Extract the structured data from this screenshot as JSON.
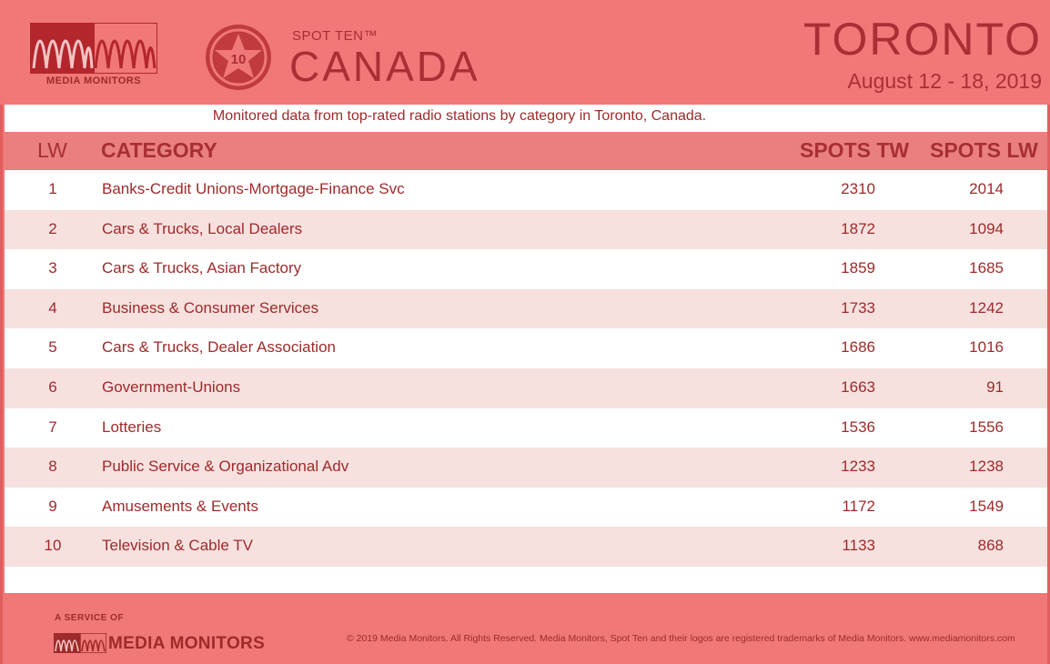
{
  "header": {
    "brand": "MEDIA MONITORS",
    "spot_ten": "SPOT TEN™",
    "badge_number": "10",
    "country": "CANADA",
    "city": "TORONTO",
    "dates": "August 12 - 18, 2019"
  },
  "subtitle": "Monitored data from top-rated radio stations by category in Toronto, Canada.",
  "table": {
    "columns": [
      "LW",
      "CATEGORY",
      "SPOTS TW",
      "SPOTS LW"
    ],
    "rows": [
      {
        "lw": "1",
        "category": "Banks-Credit Unions-Mortgage-Finance Svc",
        "spots_tw": "2310",
        "spots_lw": "2014"
      },
      {
        "lw": "2",
        "category": "Cars & Trucks, Local Dealers",
        "spots_tw": "1872",
        "spots_lw": "1094"
      },
      {
        "lw": "3",
        "category": "Cars & Trucks, Asian Factory",
        "spots_tw": "1859",
        "spots_lw": "1685"
      },
      {
        "lw": "4",
        "category": "Business & Consumer Services",
        "spots_tw": "1733",
        "spots_lw": "1242"
      },
      {
        "lw": "5",
        "category": "Cars & Trucks, Dealer Association",
        "spots_tw": "1686",
        "spots_lw": "1016"
      },
      {
        "lw": "6",
        "category": "Government-Unions",
        "spots_tw": "1663",
        "spots_lw": "91"
      },
      {
        "lw": "7",
        "category": "Lotteries",
        "spots_tw": "1536",
        "spots_lw": "1556"
      },
      {
        "lw": "8",
        "category": "Public Service & Organizational Adv",
        "spots_tw": "1233",
        "spots_lw": "1238"
      },
      {
        "lw": "9",
        "category": "Amusements & Events",
        "spots_tw": "1172",
        "spots_lw": "1549"
      },
      {
        "lw": "10",
        "category": "Television & Cable TV",
        "spots_tw": "1133",
        "spots_lw": "868"
      }
    ]
  },
  "footer": {
    "service_of": "A SERVICE OF",
    "brand": "MEDIA MONITORS",
    "copyright": "© 2019 Media Monitors. All Rights Reserved. Media Monitors, Spot Ten and their logos are registered trademarks of Media Monitors. www.mediamonitors.com"
  },
  "colors": {
    "header_bg": "#f07878",
    "accent_text": "#a82f35",
    "table_header_bg": "#e9807f",
    "alt_row_bg": "#f6e1df"
  }
}
